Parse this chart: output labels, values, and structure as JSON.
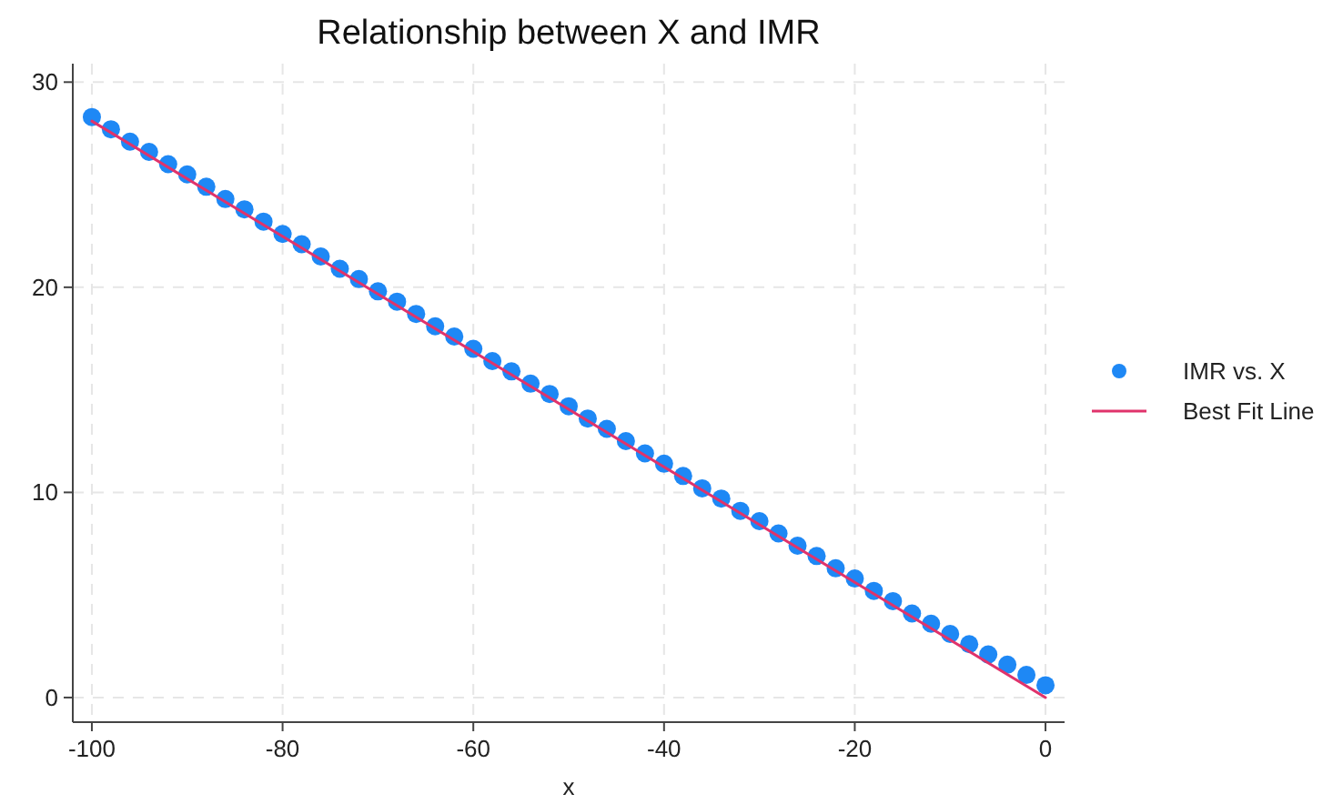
{
  "chart_data": {
    "type": "scatter",
    "title": "Relationship between X and IMR",
    "xlabel": "x",
    "x": [
      -100,
      -98,
      -96,
      -94,
      -92,
      -90,
      -88,
      -86,
      -84,
      -82,
      -80,
      -78,
      -76,
      -74,
      -72,
      -70,
      -68,
      -66,
      -64,
      -62,
      -60,
      -58,
      -56,
      -54,
      -52,
      -50,
      -48,
      -46,
      -44,
      -42,
      -40,
      -38,
      -36,
      -34,
      -32,
      -30,
      -28,
      -26,
      -24,
      -22,
      -20,
      -18,
      -16,
      -14,
      -12,
      -10,
      -8,
      -6,
      -4,
      -2,
      0
    ],
    "series": [
      {
        "name": "IMR vs. X",
        "color": "#1e88f5",
        "marker": "circle",
        "values": [
          28.3,
          27.7,
          27.1,
          26.6,
          26.0,
          25.5,
          24.9,
          24.3,
          23.8,
          23.2,
          22.6,
          22.1,
          21.5,
          20.9,
          20.4,
          19.8,
          19.3,
          18.7,
          18.1,
          17.6,
          17.0,
          16.4,
          15.9,
          15.3,
          14.8,
          14.2,
          13.6,
          13.1,
          12.5,
          11.9,
          11.4,
          10.8,
          10.2,
          9.7,
          9.1,
          8.6,
          8.0,
          7.4,
          6.9,
          6.3,
          5.8,
          5.2,
          4.7,
          4.1,
          3.6,
          3.1,
          2.6,
          2.1,
          1.6,
          1.1,
          0.6
        ]
      },
      {
        "name": "Best Fit Line",
        "type": "line",
        "color": "#e0336b",
        "line_style": "solid",
        "x": [
          -100,
          0
        ],
        "values": [
          28.1,
          0.0
        ]
      }
    ],
    "xlim": [
      -102,
      2
    ],
    "ylim": [
      -1.2,
      30.9
    ],
    "xticks": [
      -100,
      -80,
      -60,
      -40,
      -20,
      0
    ],
    "yticks": [
      0,
      10,
      20,
      30
    ],
    "grid": true,
    "legend": "right"
  }
}
